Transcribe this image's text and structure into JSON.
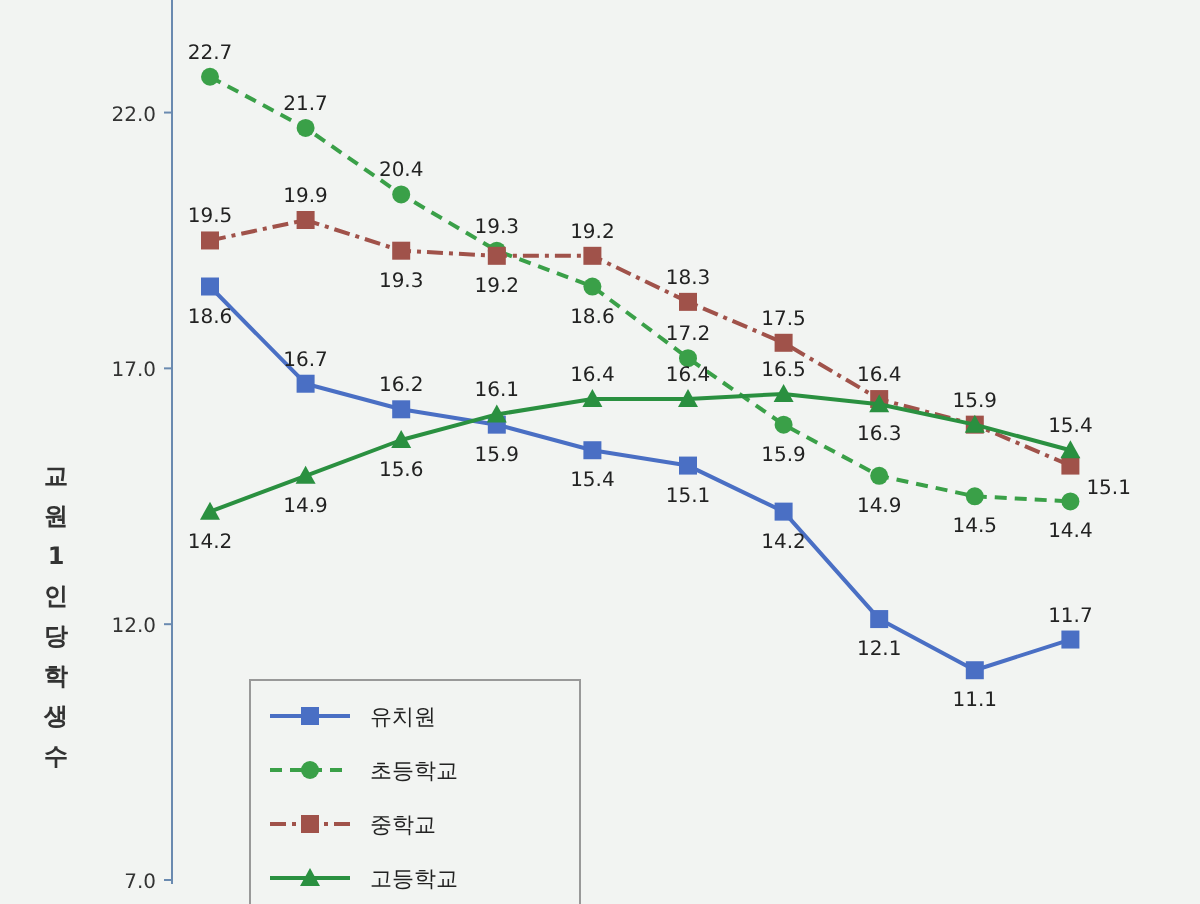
{
  "chart_data": {
    "type": "line",
    "ylabel": "교원1인당학생수",
    "categories": [
      null,
      null,
      null,
      null,
      null,
      null,
      null,
      null,
      null,
      null
    ],
    "ylim": [
      7,
      24.2
    ],
    "yticks": [
      {
        "value": 7,
        "label": "7.0"
      },
      {
        "value": 12,
        "label": "12.0"
      },
      {
        "value": 17,
        "label": "17.0"
      },
      {
        "value": 22,
        "label": "22.0"
      }
    ],
    "grid": false,
    "legend": "bottom left",
    "data_labels": true,
    "series": [
      {
        "name": "유치원",
        "color": "#4a6fc4",
        "marker": "square",
        "line_style": "solid",
        "values": [
          18.6,
          16.7,
          16.2,
          15.9,
          15.4,
          15.1,
          14.2,
          12.1,
          11.1,
          11.7
        ]
      },
      {
        "name": "초등학교",
        "color": "#3aa048",
        "marker": "circle",
        "line_style": "dashed",
        "values": [
          22.7,
          21.7,
          20.4,
          19.3,
          18.6,
          17.2,
          15.9,
          14.9,
          14.5,
          14.4
        ]
      },
      {
        "name": "중학교",
        "color": "#a0524a",
        "marker": "square",
        "line_style": "dashdot",
        "values": [
          19.5,
          19.9,
          19.3,
          19.2,
          19.2,
          18.3,
          17.5,
          16.4,
          15.9,
          15.1
        ]
      },
      {
        "name": "고등학교",
        "color": "#2a9040",
        "marker": "triangle",
        "line_style": "solid",
        "values": [
          14.2,
          14.9,
          15.6,
          16.1,
          16.4,
          16.4,
          16.5,
          16.3,
          15.9,
          15.4
        ],
        "value_labels": [
          "14.2",
          "14.9",
          "15.6",
          "16.1",
          "16.4",
          "16.4",
          "16.5",
          "16.3",
          null,
          "15.4"
        ]
      }
    ]
  }
}
